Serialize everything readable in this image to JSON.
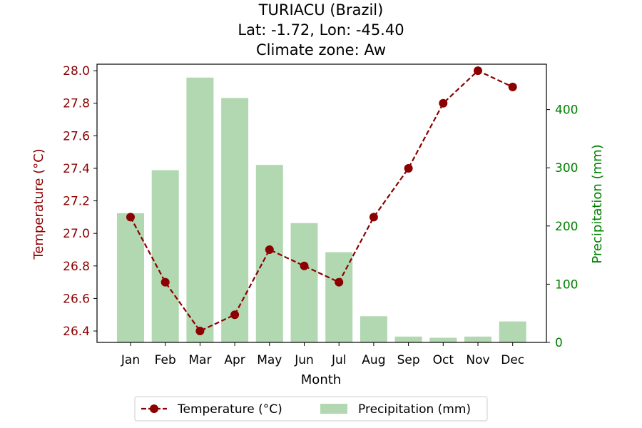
{
  "chart_data": {
    "type": "bar+line",
    "title_lines": [
      "TURIACU (Brazil)",
      "Lat: -1.72, Lon: -45.40",
      "Climate zone: Aw"
    ],
    "xlabel": "Month",
    "categories": [
      "Jan",
      "Feb",
      "Mar",
      "Apr",
      "May",
      "Jun",
      "Jul",
      "Aug",
      "Sep",
      "Oct",
      "Nov",
      "Dec"
    ],
    "temperature": {
      "name": "Temperature (°C)",
      "axis_label": "Temperature (°C)",
      "axis": "left",
      "values": [
        27.1,
        26.7,
        26.4,
        26.5,
        26.9,
        26.8,
        26.7,
        27.1,
        27.4,
        27.8,
        28.0,
        27.9
      ],
      "ylim": [
        26.33,
        28.04
      ],
      "ticks": [
        26.4,
        26.6,
        26.8,
        27.0,
        27.2,
        27.4,
        27.6,
        27.8,
        28.0
      ],
      "color": "#8b0000",
      "style": "dashed line with circle markers"
    },
    "precipitation": {
      "name": "Precipitation (mm)",
      "axis_label": "Precipitation (mm)",
      "axis": "right",
      "values": [
        222,
        296,
        455,
        420,
        305,
        205,
        155,
        45,
        10,
        8,
        10,
        36
      ],
      "ylim": [
        0,
        478
      ],
      "ticks": [
        0,
        100,
        200,
        300,
        400
      ],
      "color": "#b2d8b2",
      "style": "bars"
    },
    "left_axis_color": "#8b0000",
    "right_axis_color": "#008000",
    "legend_position": "bottom-center"
  }
}
